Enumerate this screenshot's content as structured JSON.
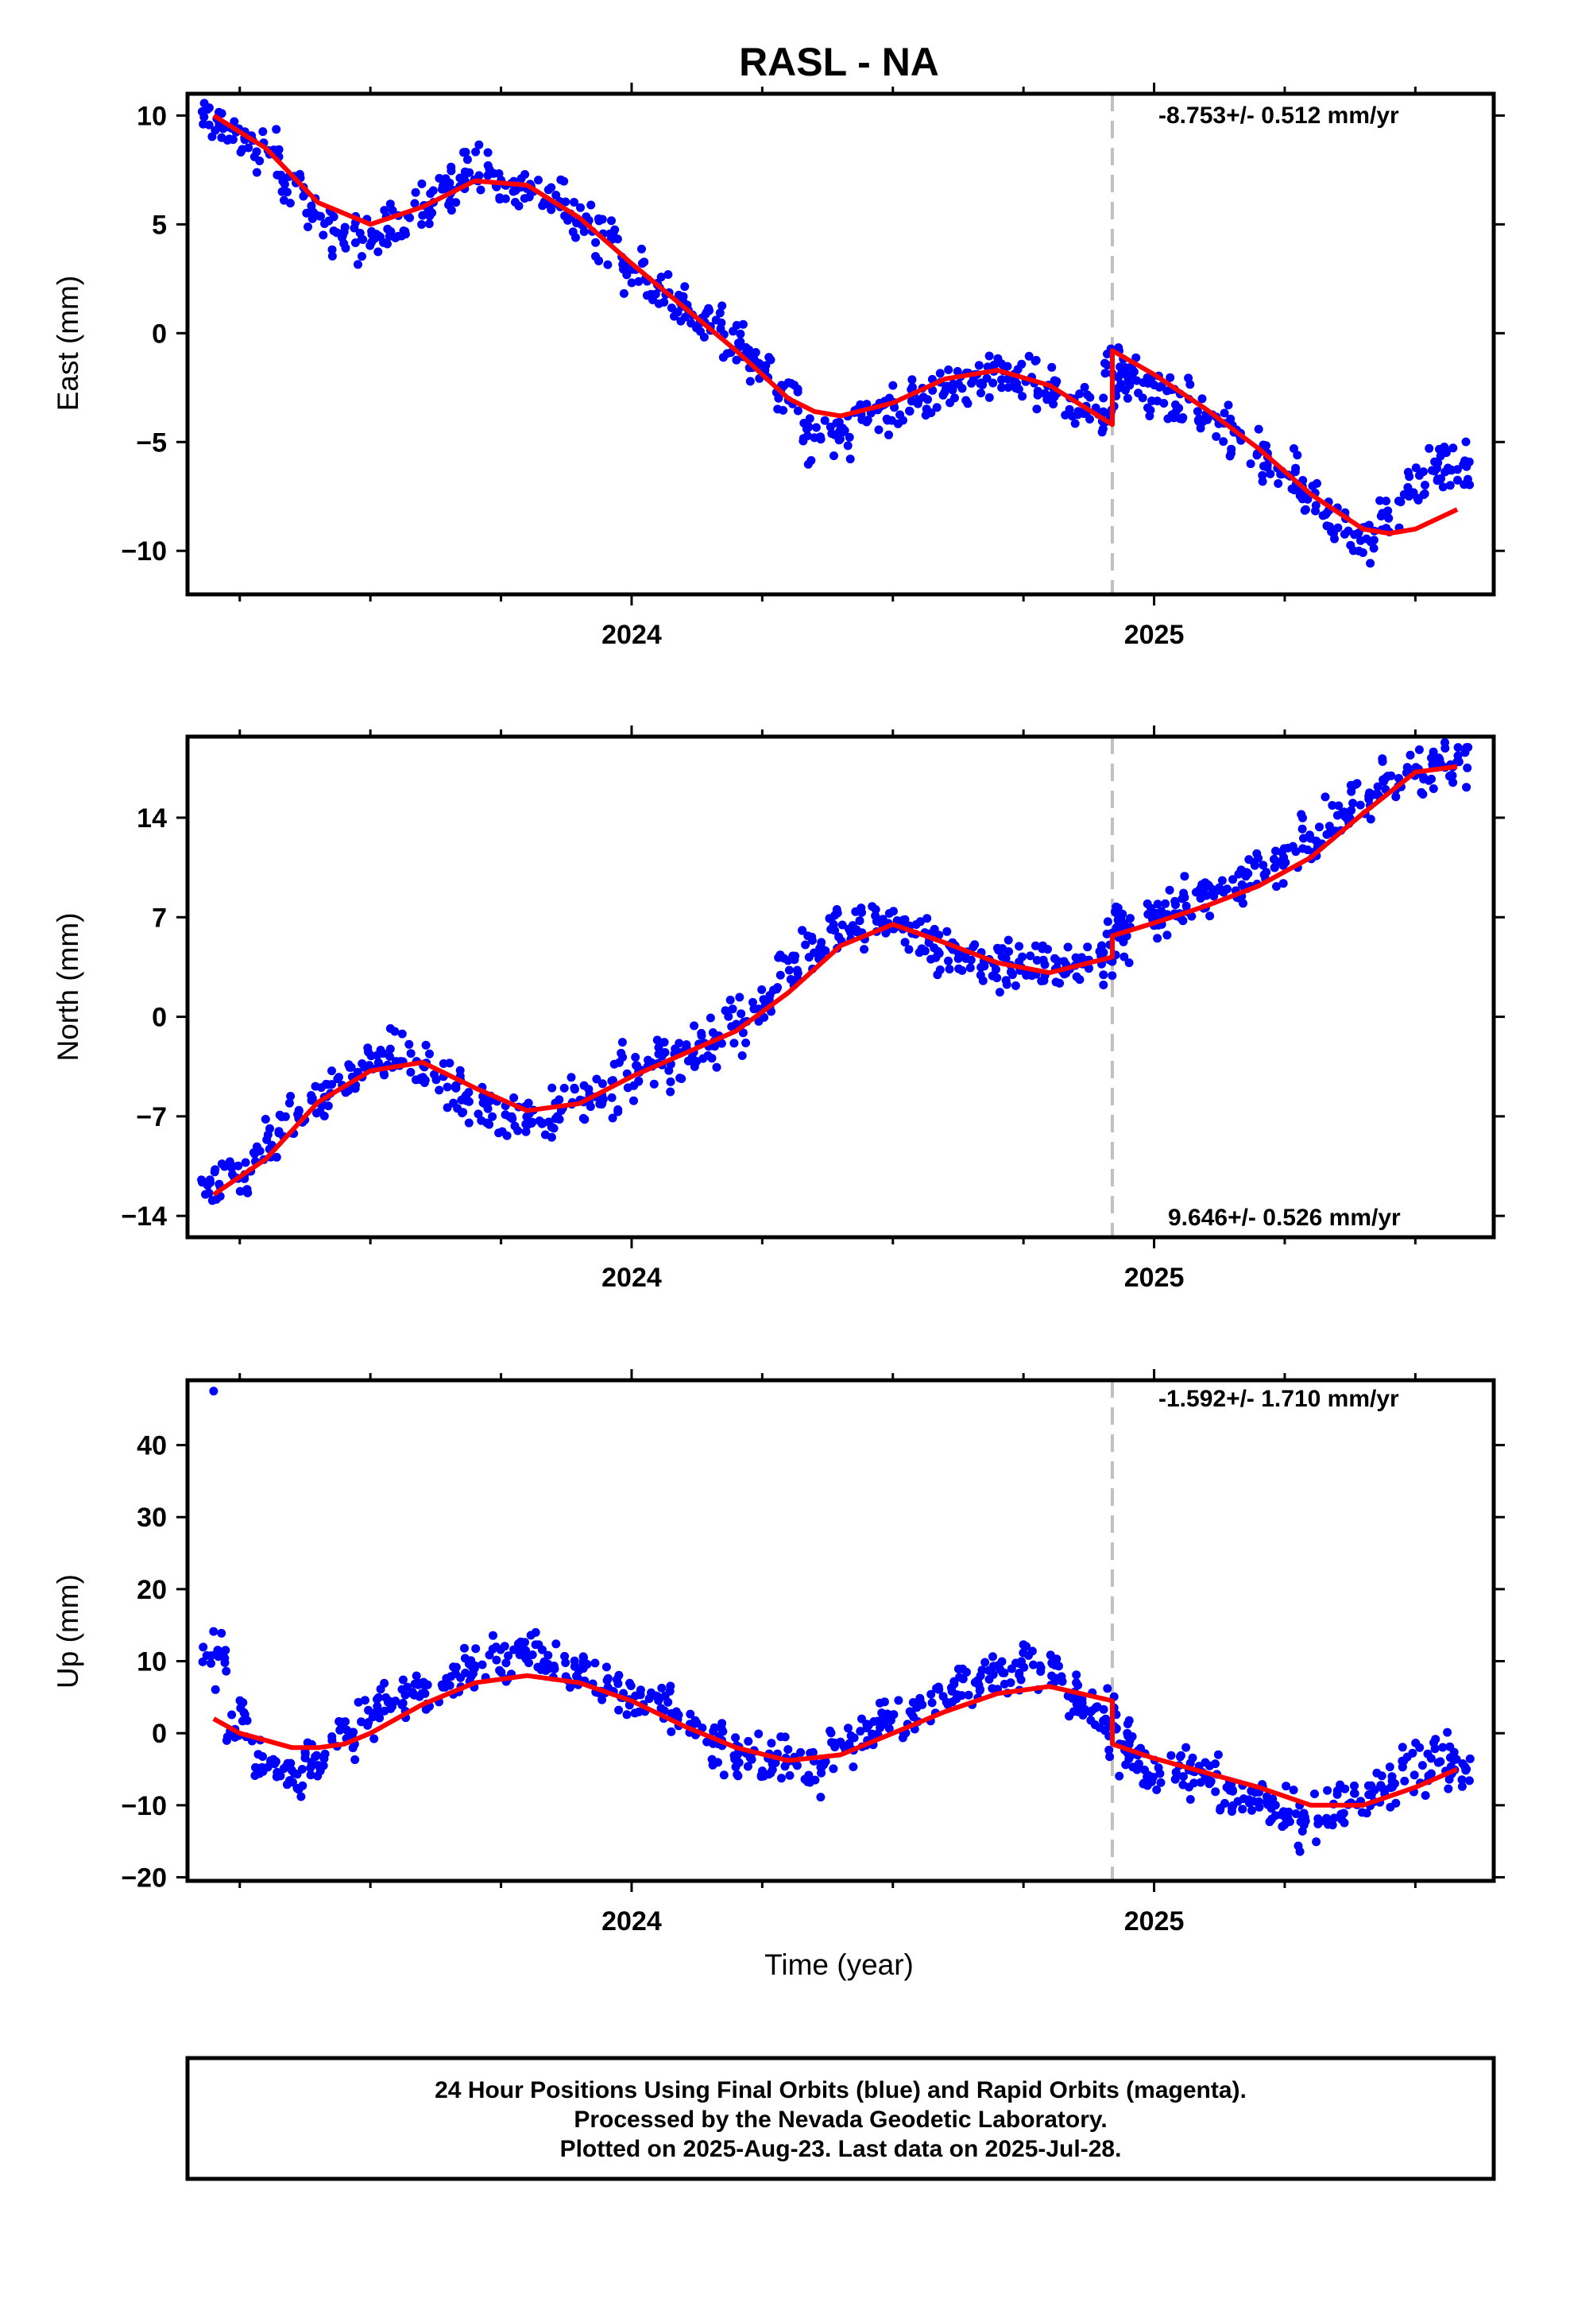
{
  "title": "RASL - NA",
  "xlabel": "Time (year)",
  "footer": [
    "24 Hour Positions Using Final Orbits (blue) and Rapid Orbits (magenta).",
    "Processed by the Nevada Geodetic Laboratory.",
    "Plotted on 2025-Aug-23. Last data on 2025-Jul-28."
  ],
  "colors": {
    "final_orbits": "#0000ff",
    "model": "#ff0000",
    "step_line": "#c0c0c0"
  },
  "chart_data": [
    {
      "type": "scatter",
      "ylabel": "East (mm)",
      "xlim": [
        2023.15,
        2025.65
      ],
      "ylim": [
        -12,
        11
      ],
      "x_ticks": [
        "2024",
        "2025"
      ],
      "y_ticks": [
        "10",
        "5",
        "0",
        "−5",
        "−10"
      ],
      "rate_label": "-8.753+/- 0.512 mm/yr",
      "step_epoch": 2024.92,
      "series": [
        {
          "name": "Final Orbits",
          "kind": "points",
          "x": [
            2023.2,
            2023.25,
            2023.3,
            2023.35,
            2023.4,
            2023.45,
            2023.5,
            2023.55,
            2023.6,
            2023.65,
            2023.7,
            2023.75,
            2023.8,
            2023.85,
            2023.9,
            2023.95,
            2024.0,
            2024.05,
            2024.1,
            2024.15,
            2024.2,
            2024.25,
            2024.3,
            2024.35,
            2024.4,
            2024.45,
            2024.5,
            2024.55,
            2024.6,
            2024.65,
            2024.7,
            2024.75,
            2024.8,
            2024.85,
            2024.9,
            2024.93,
            2024.95,
            2025.0,
            2025.05,
            2025.1,
            2025.15,
            2025.2,
            2025.25,
            2025.3,
            2025.35,
            2025.4,
            2025.45,
            2025.5,
            2025.55,
            2025.58
          ],
          "y": [
            9.8,
            9.0,
            8.2,
            6.8,
            5.5,
            4.6,
            4.2,
            4.9,
            5.8,
            6.7,
            7.4,
            7.0,
            6.6,
            6.2,
            5.4,
            4.3,
            3.2,
            2.2,
            1.3,
            0.6,
            -0.3,
            -1.5,
            -3.0,
            -4.8,
            -4.6,
            -3.7,
            -3.4,
            -3.1,
            -2.6,
            -2.2,
            -1.8,
            -2.0,
            -2.6,
            -3.2,
            -3.8,
            -1.5,
            -2.2,
            -2.6,
            -3.1,
            -3.8,
            -4.6,
            -5.6,
            -6.6,
            -7.6,
            -8.6,
            -9.3,
            -8.4,
            -7.0,
            -6.4,
            -6.2
          ]
        },
        {
          "name": "Model",
          "kind": "line",
          "x": [
            2023.2,
            2023.3,
            2023.4,
            2023.5,
            2023.6,
            2023.7,
            2023.8,
            2023.9,
            2024.0,
            2024.1,
            2024.2,
            2024.3,
            2024.35,
            2024.4,
            2024.5,
            2024.6,
            2024.7,
            2024.8,
            2024.92,
            2024.92,
            2025.0,
            2025.1,
            2025.2,
            2025.3,
            2025.4,
            2025.45,
            2025.5,
            2025.58
          ],
          "y": [
            10.0,
            8.5,
            6.0,
            5.0,
            5.8,
            7.0,
            6.8,
            5.3,
            3.2,
            1.2,
            -0.8,
            -3.0,
            -3.6,
            -3.8,
            -3.2,
            -2.1,
            -1.7,
            -2.4,
            -4.2,
            -0.8,
            -1.9,
            -3.5,
            -5.3,
            -7.4,
            -9.0,
            -9.2,
            -9.0,
            -8.1
          ]
        }
      ]
    },
    {
      "type": "scatter",
      "ylabel": "North (mm)",
      "xlim": [
        2023.15,
        2025.65
      ],
      "ylim": [
        -15.5,
        19.7
      ],
      "x_ticks": [
        "2024",
        "2025"
      ],
      "y_ticks": [
        "14",
        "7",
        "0",
        "−7",
        "−14"
      ],
      "rate_label": "9.646+/- 0.526 mm/yr",
      "step_epoch": 2024.92,
      "series": [
        {
          "name": "Final Orbits",
          "kind": "points",
          "x": [
            2023.2,
            2023.25,
            2023.3,
            2023.35,
            2023.4,
            2023.45,
            2023.5,
            2023.55,
            2023.6,
            2023.65,
            2023.7,
            2023.75,
            2023.8,
            2023.85,
            2023.9,
            2023.95,
            2024.0,
            2024.05,
            2024.1,
            2024.15,
            2024.2,
            2024.25,
            2024.3,
            2024.35,
            2024.4,
            2024.45,
            2024.5,
            2024.55,
            2024.6,
            2024.65,
            2024.7,
            2024.75,
            2024.8,
            2024.85,
            2024.9,
            2024.93,
            2024.95,
            2025.0,
            2025.05,
            2025.1,
            2025.15,
            2025.2,
            2025.25,
            2025.3,
            2025.35,
            2025.4,
            2025.45,
            2025.5,
            2025.55,
            2025.58
          ],
          "y": [
            -12.0,
            -11.4,
            -9.2,
            -7.0,
            -5.6,
            -4.5,
            -3.4,
            -2.8,
            -3.5,
            -4.8,
            -5.9,
            -6.8,
            -7.2,
            -6.7,
            -6.0,
            -5.2,
            -4.0,
            -3.2,
            -2.7,
            -2.0,
            -0.6,
            1.2,
            3.2,
            4.8,
            6.2,
            7.0,
            6.5,
            5.6,
            4.6,
            4.1,
            3.7,
            3.2,
            3.4,
            3.8,
            4.2,
            6.0,
            6.3,
            7.0,
            7.9,
            8.7,
            9.3,
            10.1,
            11.2,
            12.5,
            14.0,
            15.5,
            16.8,
            17.4,
            17.8,
            18.0
          ]
        },
        {
          "name": "Model",
          "kind": "line",
          "x": [
            2023.2,
            2023.3,
            2023.4,
            2023.5,
            2023.6,
            2023.7,
            2023.8,
            2023.9,
            2024.0,
            2024.1,
            2024.2,
            2024.3,
            2024.4,
            2024.5,
            2024.6,
            2024.7,
            2024.8,
            2024.92,
            2024.92,
            2025.0,
            2025.1,
            2025.2,
            2025.3,
            2025.4,
            2025.5,
            2025.58
          ],
          "y": [
            -12.5,
            -10.0,
            -6.0,
            -3.8,
            -3.2,
            -5.0,
            -6.6,
            -6.1,
            -4.2,
            -2.6,
            -1.0,
            1.7,
            5.0,
            6.5,
            5.2,
            3.8,
            3.1,
            4.2,
            5.7,
            6.6,
            7.8,
            9.2,
            11.2,
            14.3,
            17.2,
            17.6
          ]
        }
      ]
    },
    {
      "type": "scatter",
      "ylabel": "Up (mm)",
      "xlim": [
        2023.15,
        2025.65
      ],
      "ylim": [
        -20.5,
        49
      ],
      "x_ticks": [
        "2024",
        "2025"
      ],
      "y_ticks": [
        "40",
        "30",
        "20",
        "10",
        "0",
        "−10",
        "−20"
      ],
      "rate_label": "-1.592+/- 1.710 mm/yr",
      "step_epoch": 2024.92,
      "series": [
        {
          "name": "Final Orbits",
          "kind": "points",
          "x": [
            2023.2,
            2023.25,
            2023.3,
            2023.35,
            2023.4,
            2023.45,
            2023.5,
            2023.55,
            2023.6,
            2023.65,
            2023.7,
            2023.75,
            2023.8,
            2023.85,
            2023.9,
            2023.95,
            2024.0,
            2024.05,
            2024.1,
            2024.15,
            2024.2,
            2024.25,
            2024.3,
            2024.35,
            2024.4,
            2024.45,
            2024.5,
            2024.55,
            2024.6,
            2024.65,
            2024.7,
            2024.75,
            2024.8,
            2024.85,
            2024.9,
            2024.93,
            2024.95,
            2025.0,
            2025.05,
            2025.1,
            2025.15,
            2025.2,
            2025.25,
            2025.3,
            2025.35,
            2025.4,
            2025.45,
            2025.5,
            2025.55,
            2025.58
          ],
          "y": [
            10.0,
            2.0,
            -4.0,
            -6.0,
            -4.0,
            -1.0,
            3.0,
            5.0,
            6.0,
            7.0,
            9.0,
            10.0,
            11.0,
            10.0,
            8.0,
            7.0,
            5.0,
            4.0,
            2.0,
            -1.0,
            -3.0,
            -4.0,
            -3.0,
            -5.0,
            -2.0,
            0.0,
            2.0,
            3.0,
            5.0,
            7.0,
            9.0,
            10.0,
            8.0,
            5.0,
            3.0,
            0.0,
            -4.0,
            -6.0,
            -5.0,
            -6.0,
            -9.0,
            -10.0,
            -11.0,
            -12.0,
            -10.0,
            -9.0,
            -7.0,
            -5.0,
            -4.0,
            -5.0
          ]
        },
        {
          "name": "Outlier",
          "kind": "points",
          "x": [
            2023.2
          ],
          "y": [
            47.5
          ]
        },
        {
          "name": "Model",
          "kind": "line",
          "x": [
            2023.2,
            2023.25,
            2023.3,
            2023.35,
            2023.4,
            2023.45,
            2023.5,
            2023.55,
            2023.6,
            2023.7,
            2023.8,
            2023.9,
            2024.0,
            2024.1,
            2024.2,
            2024.3,
            2024.4,
            2024.5,
            2024.6,
            2024.7,
            2024.8,
            2024.92,
            2024.92,
            2025.0,
            2025.1,
            2025.2,
            2025.3,
            2025.4,
            2025.5,
            2025.58
          ],
          "y": [
            2.0,
            0.0,
            -1.0,
            -2.0,
            -2.0,
            -1.5,
            0.0,
            2.0,
            4.0,
            7.0,
            8.0,
            7.0,
            4.5,
            1.0,
            -2.0,
            -3.8,
            -3.0,
            0.0,
            3.0,
            5.5,
            6.5,
            4.5,
            -1.5,
            -3.5,
            -5.5,
            -7.5,
            -10.0,
            -10.0,
            -7.5,
            -5.0
          ]
        }
      ]
    }
  ]
}
